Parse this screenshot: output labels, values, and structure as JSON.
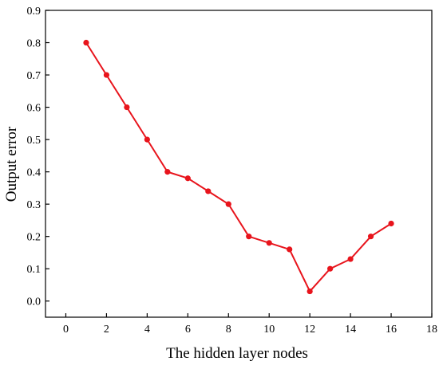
{
  "chart_data": {
    "type": "line",
    "title": "",
    "xlabel": "The hidden layer nodes",
    "ylabel": "Output error",
    "xlim": [
      -1,
      18
    ],
    "ylim": [
      -0.05,
      0.9
    ],
    "xticks": [
      0,
      2,
      4,
      6,
      8,
      10,
      12,
      14,
      16,
      18
    ],
    "yticks": [
      0.0,
      0.1,
      0.2,
      0.3,
      0.4,
      0.5,
      0.6,
      0.7,
      0.8,
      0.9
    ],
    "xtick_labels": [
      "0",
      "2",
      "4",
      "6",
      "8",
      "10",
      "12",
      "14",
      "16",
      "18"
    ],
    "ytick_labels": [
      "0.0",
      "0.1",
      "0.2",
      "0.3",
      "0.4",
      "0.5",
      "0.6",
      "0.7",
      "0.8",
      "0.9"
    ],
    "grid": false,
    "legend": "none",
    "series": [
      {
        "color": "#e8141c",
        "x": [
          1,
          2,
          3,
          4,
          5,
          6,
          7,
          8,
          9,
          10,
          11,
          12,
          13,
          14,
          15,
          16
        ],
        "y": [
          0.8,
          0.7,
          0.6,
          0.5,
          0.4,
          0.38,
          0.34,
          0.3,
          0.2,
          0.18,
          0.16,
          0.03,
          0.1,
          0.13,
          0.2,
          0.24
        ]
      }
    ]
  }
}
